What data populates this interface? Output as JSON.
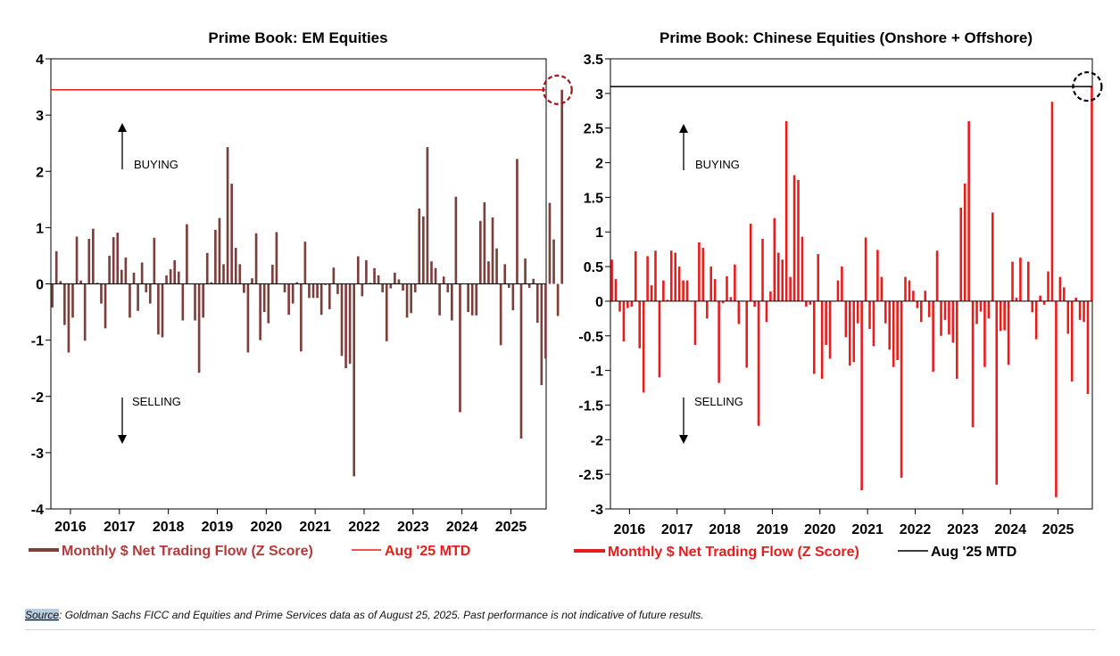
{
  "chart_data": [
    {
      "type": "bar",
      "title": "Prime Book: EM Equities",
      "bar_color": "#7b3f3c",
      "ref_color": "#e81c1c",
      "circle_color": "#a01818",
      "ylim": [
        -4,
        4
      ],
      "yticks": [
        -4,
        -3,
        -2,
        -1,
        0,
        1,
        2,
        3,
        4
      ],
      "ytick_labels": [
        "-4",
        "-3",
        "-2",
        "-1",
        "0",
        "1",
        "2",
        "3",
        "4"
      ],
      "xlim": [
        2015.6,
        2025.72
      ],
      "xticks": [
        2016,
        2017,
        2018,
        2019,
        2020,
        2021,
        2022,
        2023,
        2024,
        2025
      ],
      "xtick_labels": [
        "2016",
        "2017",
        "2018",
        "2019",
        "2020",
        "2021",
        "2022",
        "2023",
        "2024",
        "2025"
      ],
      "x_start": 2015.63,
      "month_step": 0.0833,
      "values": [
        -0.42,
        0.58,
        0.05,
        -0.73,
        -1.22,
        -0.6,
        0.84,
        0.06,
        -1.01,
        0.8,
        0.98,
        0.02,
        -0.35,
        -0.79,
        0.5,
        0.83,
        0.91,
        0.25,
        0.47,
        -0.6,
        0.2,
        -0.48,
        0.38,
        -0.15,
        -0.35,
        0.82,
        -0.9,
        -0.95,
        0.15,
        0.26,
        0.42,
        0.22,
        -0.65,
        1.06,
        0.0,
        -0.65,
        -1.58,
        -0.6,
        0.55,
        0.03,
        0.96,
        1.17,
        0.35,
        2.43,
        1.78,
        0.64,
        0.35,
        -0.16,
        -1.22,
        0.1,
        0.9,
        -1.0,
        -0.5,
        -0.7,
        0.34,
        0.92,
        0.0,
        -0.15,
        -0.55,
        -0.35,
        0.03,
        -1.2,
        0.75,
        -0.25,
        -0.25,
        -0.25,
        -0.55,
        -0.02,
        -0.45,
        0.29,
        -0.18,
        -1.28,
        -1.5,
        -1.42,
        -3.42,
        0.49,
        -0.22,
        0.42,
        0.02,
        0.28,
        0.15,
        -0.15,
        -1.02,
        -0.08,
        0.2,
        0.08,
        -0.12,
        -0.6,
        -0.52,
        -0.15,
        1.34,
        1.2,
        2.43,
        0.4,
        0.28,
        -0.56,
        0.13,
        -0.15,
        -0.65,
        1.55,
        -2.28,
        0.0,
        -0.5,
        -0.56,
        -0.56,
        1.12,
        1.45,
        0.4,
        1.18,
        0.63,
        -1.09,
        0.35,
        -0.07,
        -0.47,
        2.22,
        -2.75,
        0.45,
        -0.07,
        0.09,
        -0.69,
        -1.8,
        -1.33,
        1.44,
        0.79,
        -0.57,
        3.45
      ],
      "reference_line": 3.45,
      "buying_label": "BUYING",
      "selling_label": "SELLING",
      "legend": [
        "Monthly $ Net Trading Flow (Z Score)",
        "Aug '25 MTD"
      ],
      "legend_text_color": "#b23a3a"
    },
    {
      "type": "bar",
      "title": "Prime Book: Chinese Equities (Onshore + Offshore)",
      "bar_color": "#e81c1c",
      "ref_color": "#000000",
      "circle_color": "#000000",
      "ylim": [
        -3,
        3.5
      ],
      "yticks": [
        -3,
        -2.5,
        -2,
        -1.5,
        -1,
        -0.5,
        0,
        0.5,
        1,
        1.5,
        2,
        2.5,
        3,
        3.5
      ],
      "ytick_labels": [
        "-3",
        "-2.5",
        "-2",
        "-1.5",
        "-1",
        "-0.5",
        "0",
        "0.5",
        "1",
        "1.5",
        "2",
        "2.5",
        "3",
        "3.5"
      ],
      "xlim": [
        2015.6,
        2025.72
      ],
      "xticks": [
        2016,
        2017,
        2018,
        2019,
        2020,
        2021,
        2022,
        2023,
        2024,
        2025
      ],
      "xtick_labels": [
        "2016",
        "2017",
        "2018",
        "2019",
        "2020",
        "2021",
        "2022",
        "2023",
        "2024",
        "2025"
      ],
      "x_start": 2015.63,
      "month_step": 0.0833,
      "values": [
        0.6,
        0.32,
        -0.15,
        -0.58,
        -0.1,
        -0.08,
        0.72,
        -0.68,
        -1.32,
        0.65,
        0.23,
        0.73,
        -1.1,
        0.3,
        0.02,
        0.73,
        0.7,
        0.5,
        0.3,
        0.3,
        0.0,
        -0.63,
        0.85,
        0.77,
        -0.25,
        0.5,
        0.32,
        -1.18,
        -0.03,
        0.36,
        0.06,
        0.53,
        -0.33,
        0.0,
        -0.96,
        1.12,
        -0.08,
        -1.8,
        0.9,
        -0.3,
        0.14,
        1.2,
        0.7,
        0.6,
        2.6,
        0.35,
        1.82,
        1.75,
        0.93,
        -0.08,
        -0.05,
        -1.05,
        0.68,
        -1.12,
        -0.63,
        -0.83,
        0.0,
        0.3,
        0.5,
        -0.52,
        -0.93,
        -0.88,
        -0.32,
        -2.73,
        0.92,
        -0.4,
        -0.65,
        0.74,
        0.35,
        -0.32,
        -0.7,
        -0.95,
        -0.85,
        -2.55,
        0.35,
        0.3,
        0.15,
        -0.1,
        -0.3,
        0.15,
        -0.23,
        -1.02,
        0.73,
        -0.5,
        -0.27,
        -0.48,
        -0.6,
        -1.12,
        1.35,
        1.7,
        2.6,
        -1.82,
        -0.33,
        -0.15,
        -0.95,
        -0.25,
        1.28,
        -2.65,
        -0.43,
        -0.42,
        -0.92,
        0.57,
        0.05,
        0.63,
        0.0,
        0.57,
        -0.16,
        -0.55,
        0.08,
        -0.05,
        0.43,
        2.88,
        -2.83,
        0.35,
        0.2,
        -0.47,
        -1.16,
        0.05,
        -0.27,
        -0.3,
        -1.34,
        3.1
      ],
      "reference_line": 3.1,
      "buying_label": "BUYING",
      "selling_label": "SELLING",
      "legend": [
        "Monthly $ Net Trading Flow (Z Score)",
        "Aug '25 MTD"
      ],
      "legend_text_color": "#e81c1c"
    }
  ],
  "source": {
    "label": "Source",
    "text": ": Goldman Sachs FICC and Equities and Prime Services data as of August 25, 2025. Past performance is not indicative of future results."
  }
}
